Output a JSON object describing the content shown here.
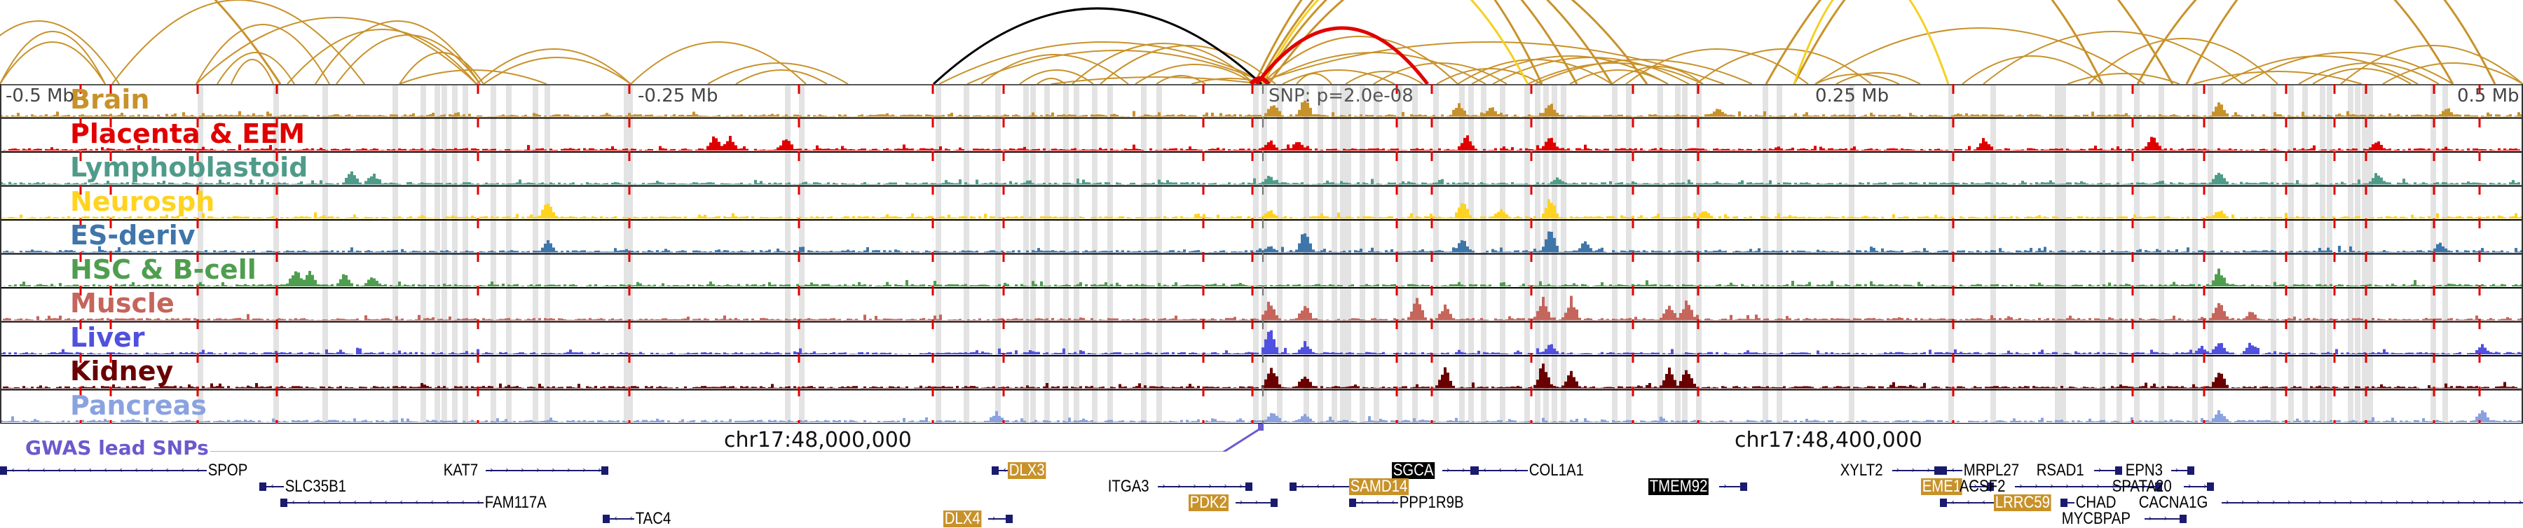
{
  "view": {
    "region": "chr17 around SNP locus",
    "axis": {
      "ticks": [
        {
          "label": "-0.5 Mb",
          "pos": -0.5
        },
        {
          "label": "-0.25 Mb",
          "pos": -0.25
        },
        {
          "label": "0.25 Mb",
          "pos": 0.25
        },
        {
          "label": "0.5 Mb",
          "pos": 0.5
        }
      ],
      "range_mb": [
        -0.5,
        0.5
      ]
    },
    "snp": {
      "label": "SNP: p=2.0e-08",
      "pos_mb": 0.0
    }
  },
  "colors": {
    "arc_default": "#c8922a",
    "arc_highlight_black": "#000000",
    "arc_highlight_red": "#e00000",
    "arc_highlight_yellow": "#f5d020",
    "dashed_marker": "#e00000",
    "grey_band": "#e3e3e3",
    "gene_color": "#1a1a6e",
    "gwas_color": "#6a5acd"
  },
  "tracks": [
    {
      "name": "Brain",
      "color": "#c8922a"
    },
    {
      "name": "Placenta & EEM",
      "color": "#e00000"
    },
    {
      "name": "Lymphoblastoid",
      "color": "#4f9b8a"
    },
    {
      "name": "Neurosph",
      "color": "#ffd320"
    },
    {
      "name": "ES-deriv",
      "color": "#3f76aa"
    },
    {
      "name": "HSC & B-cell",
      "color": "#4f9e4f"
    },
    {
      "name": "Muscle",
      "color": "#c5655c"
    },
    {
      "name": "Liver",
      "color": "#5050e0"
    },
    {
      "name": "Kidney",
      "color": "#6a0000"
    },
    {
      "name": "Pancreas",
      "color": "#8aa2e0"
    }
  ],
  "gwas": {
    "label": "GWAS lead SNPs"
  },
  "coordinates": [
    {
      "label": "chr17:48,000,000"
    },
    {
      "label": "chr17:48,400,000"
    }
  ],
  "genes": [
    {
      "name": "SPOP",
      "strand": "-",
      "highlight": ""
    },
    {
      "name": "KAT7",
      "strand": "+",
      "highlight": ""
    },
    {
      "name": "SLC35B1",
      "strand": "-",
      "highlight": ""
    },
    {
      "name": "FAM117A",
      "strand": "-",
      "highlight": ""
    },
    {
      "name": "TAC4",
      "strand": "-",
      "highlight": ""
    },
    {
      "name": "DLX3",
      "strand": "-",
      "highlight": "gold"
    },
    {
      "name": "DLX4",
      "strand": "+",
      "highlight": "gold"
    },
    {
      "name": "ITGA3",
      "strand": "+",
      "highlight": ""
    },
    {
      "name": "PDK2",
      "strand": "+",
      "highlight": "gold"
    },
    {
      "name": "SGCA",
      "strand": "+",
      "highlight": "black"
    },
    {
      "name": "SAMD14",
      "strand": "-",
      "highlight": "gold"
    },
    {
      "name": "PPP1R9B",
      "strand": "-",
      "highlight": ""
    },
    {
      "name": "COL1A1",
      "strand": "-",
      "highlight": ""
    },
    {
      "name": "TMEM92",
      "strand": "+",
      "highlight": "black"
    },
    {
      "name": "XYLT2",
      "strand": "+",
      "highlight": ""
    },
    {
      "name": "MRPL27",
      "strand": "-",
      "highlight": ""
    },
    {
      "name": "EME1",
      "strand": "+",
      "highlight": "gold"
    },
    {
      "name": "LRRC59",
      "strand": "-",
      "highlight": "gold"
    },
    {
      "name": "ACSF2",
      "strand": "+",
      "highlight": ""
    },
    {
      "name": "RSAD1",
      "strand": "+",
      "highlight": ""
    },
    {
      "name": "CHAD",
      "strand": "-",
      "highlight": ""
    },
    {
      "name": "MYCBPAP",
      "strand": "+",
      "highlight": ""
    },
    {
      "name": "EPN3",
      "strand": "+",
      "highlight": ""
    },
    {
      "name": "SPATA20",
      "strand": "+",
      "highlight": ""
    },
    {
      "name": "CACNA1G",
      "strand": "+",
      "highlight": ""
    }
  ]
}
